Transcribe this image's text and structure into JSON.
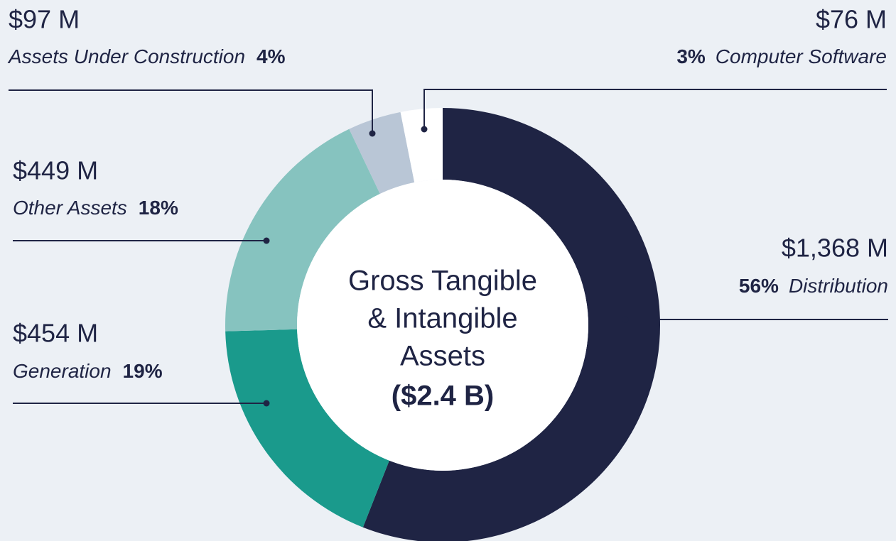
{
  "chart_data": {
    "type": "donut",
    "categories": [
      "Distribution",
      "Generation",
      "Other Assets",
      "Assets Under Construction",
      "Computer Software"
    ],
    "values": [
      1368,
      454,
      449,
      97,
      76
    ],
    "value_labels": [
      "$1,368 M",
      "$454 M",
      "$449 M",
      "$97 M",
      "$76 M"
    ],
    "percents": [
      56,
      19,
      18,
      4,
      3
    ],
    "percent_labels": [
      "56%",
      "19%",
      "18%",
      "4%",
      "3%"
    ],
    "colors": [
      "#1f2444",
      "#1a9a8c",
      "#86c3bf",
      "#b9c6d6",
      "#ffffff"
    ],
    "center_lines": [
      "Gross Tangible",
      "& Intangible",
      "Assets"
    ],
    "center_total": "($2.4 B)"
  }
}
